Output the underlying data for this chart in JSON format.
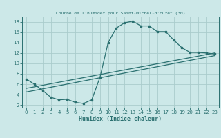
{
  "title": "Courbe de l'humidex pour Saint-Michel-d'Euzet (30)",
  "xlabel": "Humidex (Indice chaleur)",
  "bg_color": "#cce8e8",
  "grid_color": "#aacccc",
  "line_color": "#2a7070",
  "xlim": [
    -0.5,
    23.5
  ],
  "ylim": [
    1.5,
    19.0
  ],
  "xticks": [
    0,
    1,
    2,
    3,
    4,
    5,
    6,
    7,
    8,
    9,
    10,
    11,
    12,
    13,
    14,
    15,
    16,
    17,
    18,
    19,
    20,
    21,
    22,
    23
  ],
  "yticks": [
    2,
    4,
    6,
    8,
    10,
    12,
    14,
    16,
    18
  ],
  "curve1_x": [
    0,
    1,
    2,
    3,
    4,
    5,
    6,
    7,
    8,
    9,
    10,
    11,
    12,
    13,
    14,
    15,
    16,
    17,
    18,
    19,
    20,
    21,
    22,
    23
  ],
  "curve1_y": [
    7.0,
    6.0,
    4.8,
    3.5,
    3.0,
    3.1,
    2.5,
    2.3,
    3.0,
    7.3,
    14.0,
    16.8,
    17.8,
    18.1,
    17.2,
    17.2,
    16.1,
    16.1,
    14.5,
    13.0,
    12.1,
    12.1,
    12.0,
    11.8
  ],
  "curve2_x": [
    0,
    23
  ],
  "curve2_y": [
    5.2,
    12.0
  ],
  "curve3_x": [
    0,
    23
  ],
  "curve3_y": [
    4.5,
    11.5
  ],
  "marker_size": 2.0,
  "line_width": 0.9,
  "tick_fontsize": 5,
  "xlabel_fontsize": 6,
  "title_fontsize": 4.5
}
